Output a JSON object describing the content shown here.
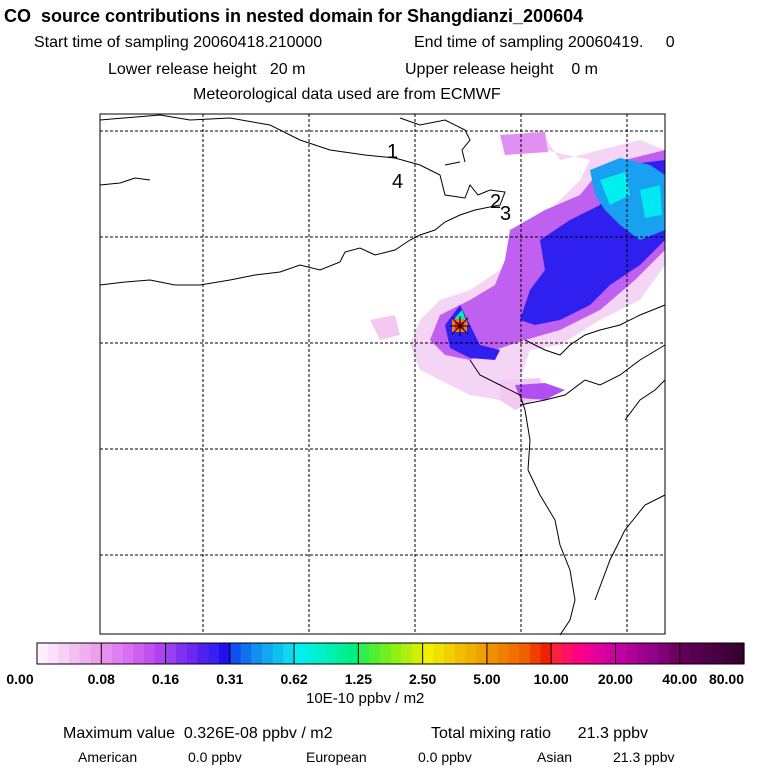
{
  "header": {
    "title": "CO  source contributions in nested domain for Shangdianzi_200604",
    "start_sampling": "Start time of sampling 20060418.210000",
    "end_sampling": "End time of sampling 20060419.     0",
    "lower_release": "Lower release height   20 m",
    "upper_release": "Upper release height    0 m",
    "met_data": "Meteorological data used are from ECMWF"
  },
  "map": {
    "station_labels": [
      "1",
      "4",
      "2",
      "3"
    ],
    "marker": "station-marker"
  },
  "colorbar": {
    "tick_labels": [
      "0.00",
      "0.08",
      "0.16",
      "0.31",
      "0.62",
      "1.25",
      "2.50",
      "5.00",
      "10.00",
      "20.00",
      "40.00",
      "80.00"
    ],
    "units": "10E-10 ppbv / m2"
  },
  "stats": {
    "maximum": "Maximum value  0.326E-08 ppbv / m2",
    "total": "Total mixing ratio      21.3 ppbv",
    "regions": [
      {
        "name": "American",
        "value": "0.0 ppbv"
      },
      {
        "name": "European",
        "value": "0.0 ppbv"
      },
      {
        "name": "Asian",
        "value": "21.3 ppbv"
      }
    ]
  },
  "colors": {
    "low_pink": "#f3c8f3",
    "violet": "#c060f0",
    "blue": "#2020f0",
    "light_blue": "#1aa0f0",
    "cyan": "#00f0f0",
    "marker_red": "#ff2010"
  }
}
